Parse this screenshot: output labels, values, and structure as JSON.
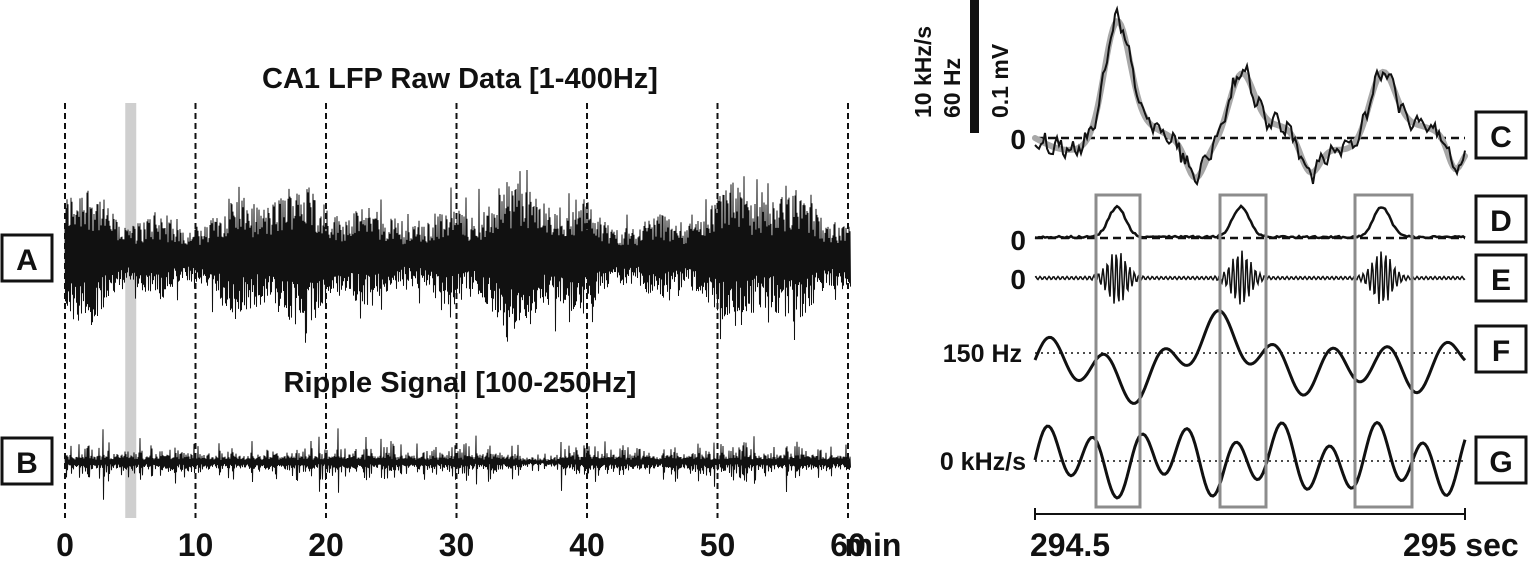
{
  "left": {
    "title_top": "CA1 LFP Raw Data [1-400Hz]",
    "title_bottom": "Ripple Signal [100-250Hz]",
    "label_a": "A",
    "label_b": "B",
    "x_ticks": [
      "0",
      "10",
      "20",
      "30",
      "40",
      "50",
      "60"
    ],
    "x_unit": "min",
    "highlight_minute": 5
  },
  "right": {
    "labels": [
      "C",
      "D",
      "E",
      "F",
      "G"
    ],
    "scale_text_1": "10 kHz/s",
    "scale_text_2": "60 Hz",
    "scale_text_3": "0.1 mV",
    "zero_c": "0",
    "zero_d": "0",
    "zero_e": "0",
    "freq_ref": "150 Hz",
    "accel_ref": "0 kHz/s",
    "x_start": "294.5",
    "x_end": "295 sec"
  },
  "colors": {
    "trace": "#111111",
    "smooth_trace": "#a8a8a8",
    "highlight_bar": "#cfcfcf",
    "event_box": "#8c8c8c"
  }
}
